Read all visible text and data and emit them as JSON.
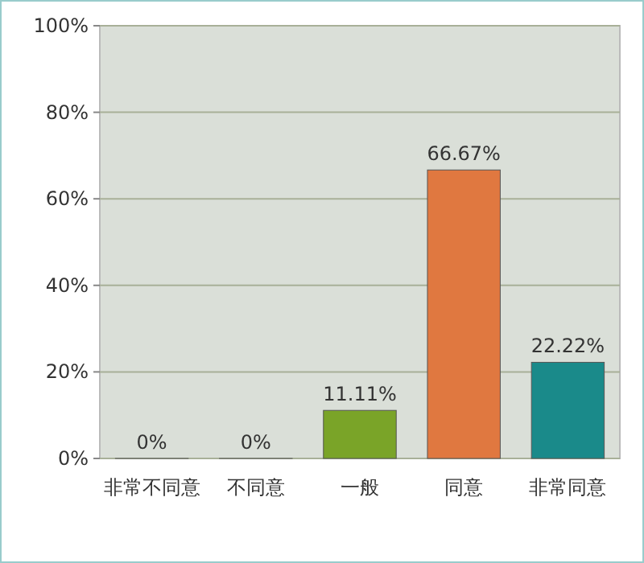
{
  "chart_data": {
    "type": "bar",
    "categories": [
      "非常不同意",
      "不同意",
      "一般",
      "同意",
      "非常同意"
    ],
    "values": [
      0,
      0,
      11.11,
      66.67,
      22.22
    ],
    "colors": [
      "#a8c8e8",
      "#e8b840",
      "#7aa428",
      "#e07840",
      "#1a8a8a"
    ],
    "value_labels": [
      "0%",
      "0%",
      "11.11%",
      "66.67%",
      "22.22%"
    ],
    "ylim": [
      0,
      100
    ],
    "yticks": [
      {
        "value": 0,
        "label": "0%"
      },
      {
        "value": 20,
        "label": "20%"
      },
      {
        "value": 40,
        "label": "40%"
      },
      {
        "value": 60,
        "label": "60%"
      },
      {
        "value": 80,
        "label": "80%"
      },
      {
        "value": 100,
        "label": "100%"
      }
    ],
    "grid": "y"
  }
}
